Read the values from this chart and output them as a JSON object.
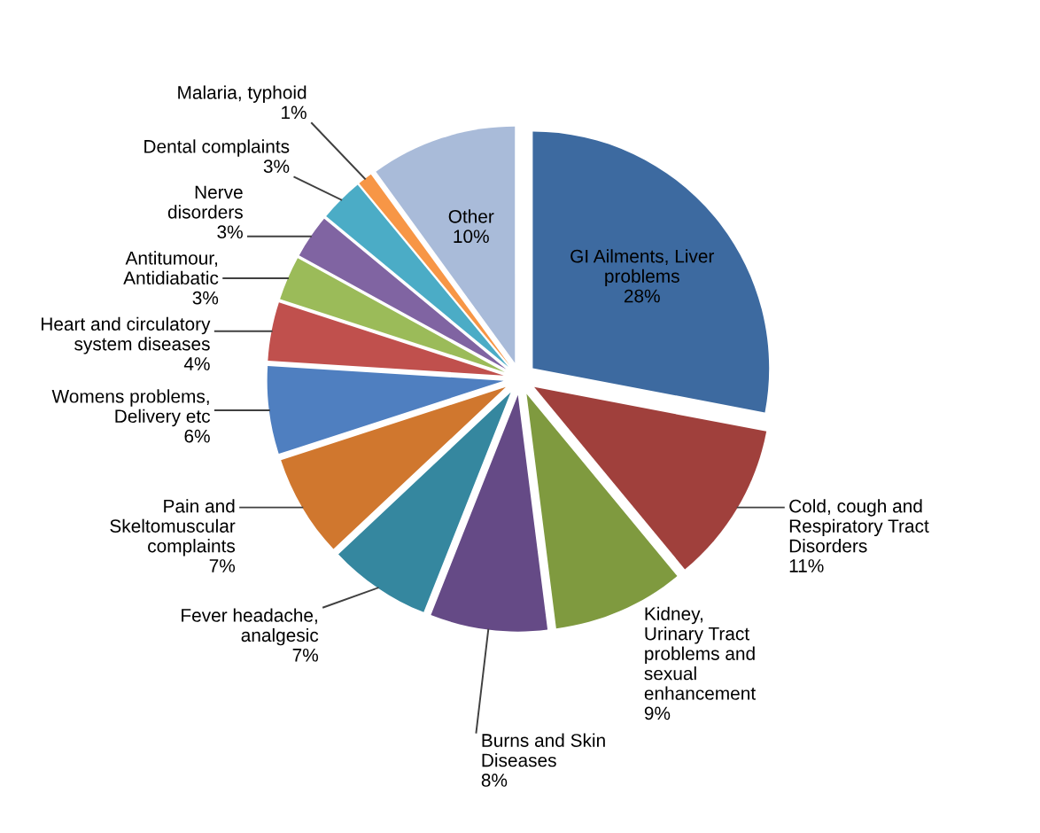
{
  "chart_data": {
    "type": "pie",
    "categories": [
      "GI Ailments, Liver\nproblems",
      "Cold, cough and\nRespiratory Tract\nDisorders",
      "Kidney,\nUrinary Tract\nproblems and\nsexual\nenhancement",
      "Burns and Skin\nDiseases",
      "Fever headache,\nanalgesic",
      "Pain and\nSkeltomuscular\ncomplaints",
      "Womens problems,\nDelivery etc",
      "Heart and circulatory\nsystem diseases",
      "Antitumour,\nAntidiabatic",
      "Nerve\ndisorders",
      "Dental complaints",
      "Malaria, typhoid",
      "Other"
    ],
    "values": [
      28,
      11,
      9,
      8,
      7,
      7,
      6,
      4,
      3,
      3,
      3,
      1,
      10
    ],
    "value_labels": [
      "28%",
      "11%",
      "9%",
      "8%",
      "7%",
      "7%",
      "6%",
      "4%",
      "3%",
      "3%",
      "3%",
      "1%",
      "10%"
    ],
    "colors": [
      "#3d6aa0",
      "#a0403c",
      "#7f9a3f",
      "#654a86",
      "#35879f",
      "#d0772e",
      "#4f7fc0",
      "#c0504d",
      "#9bbb59",
      "#8064a2",
      "#4bacc6",
      "#f79646",
      "#a9bbd9"
    ]
  }
}
